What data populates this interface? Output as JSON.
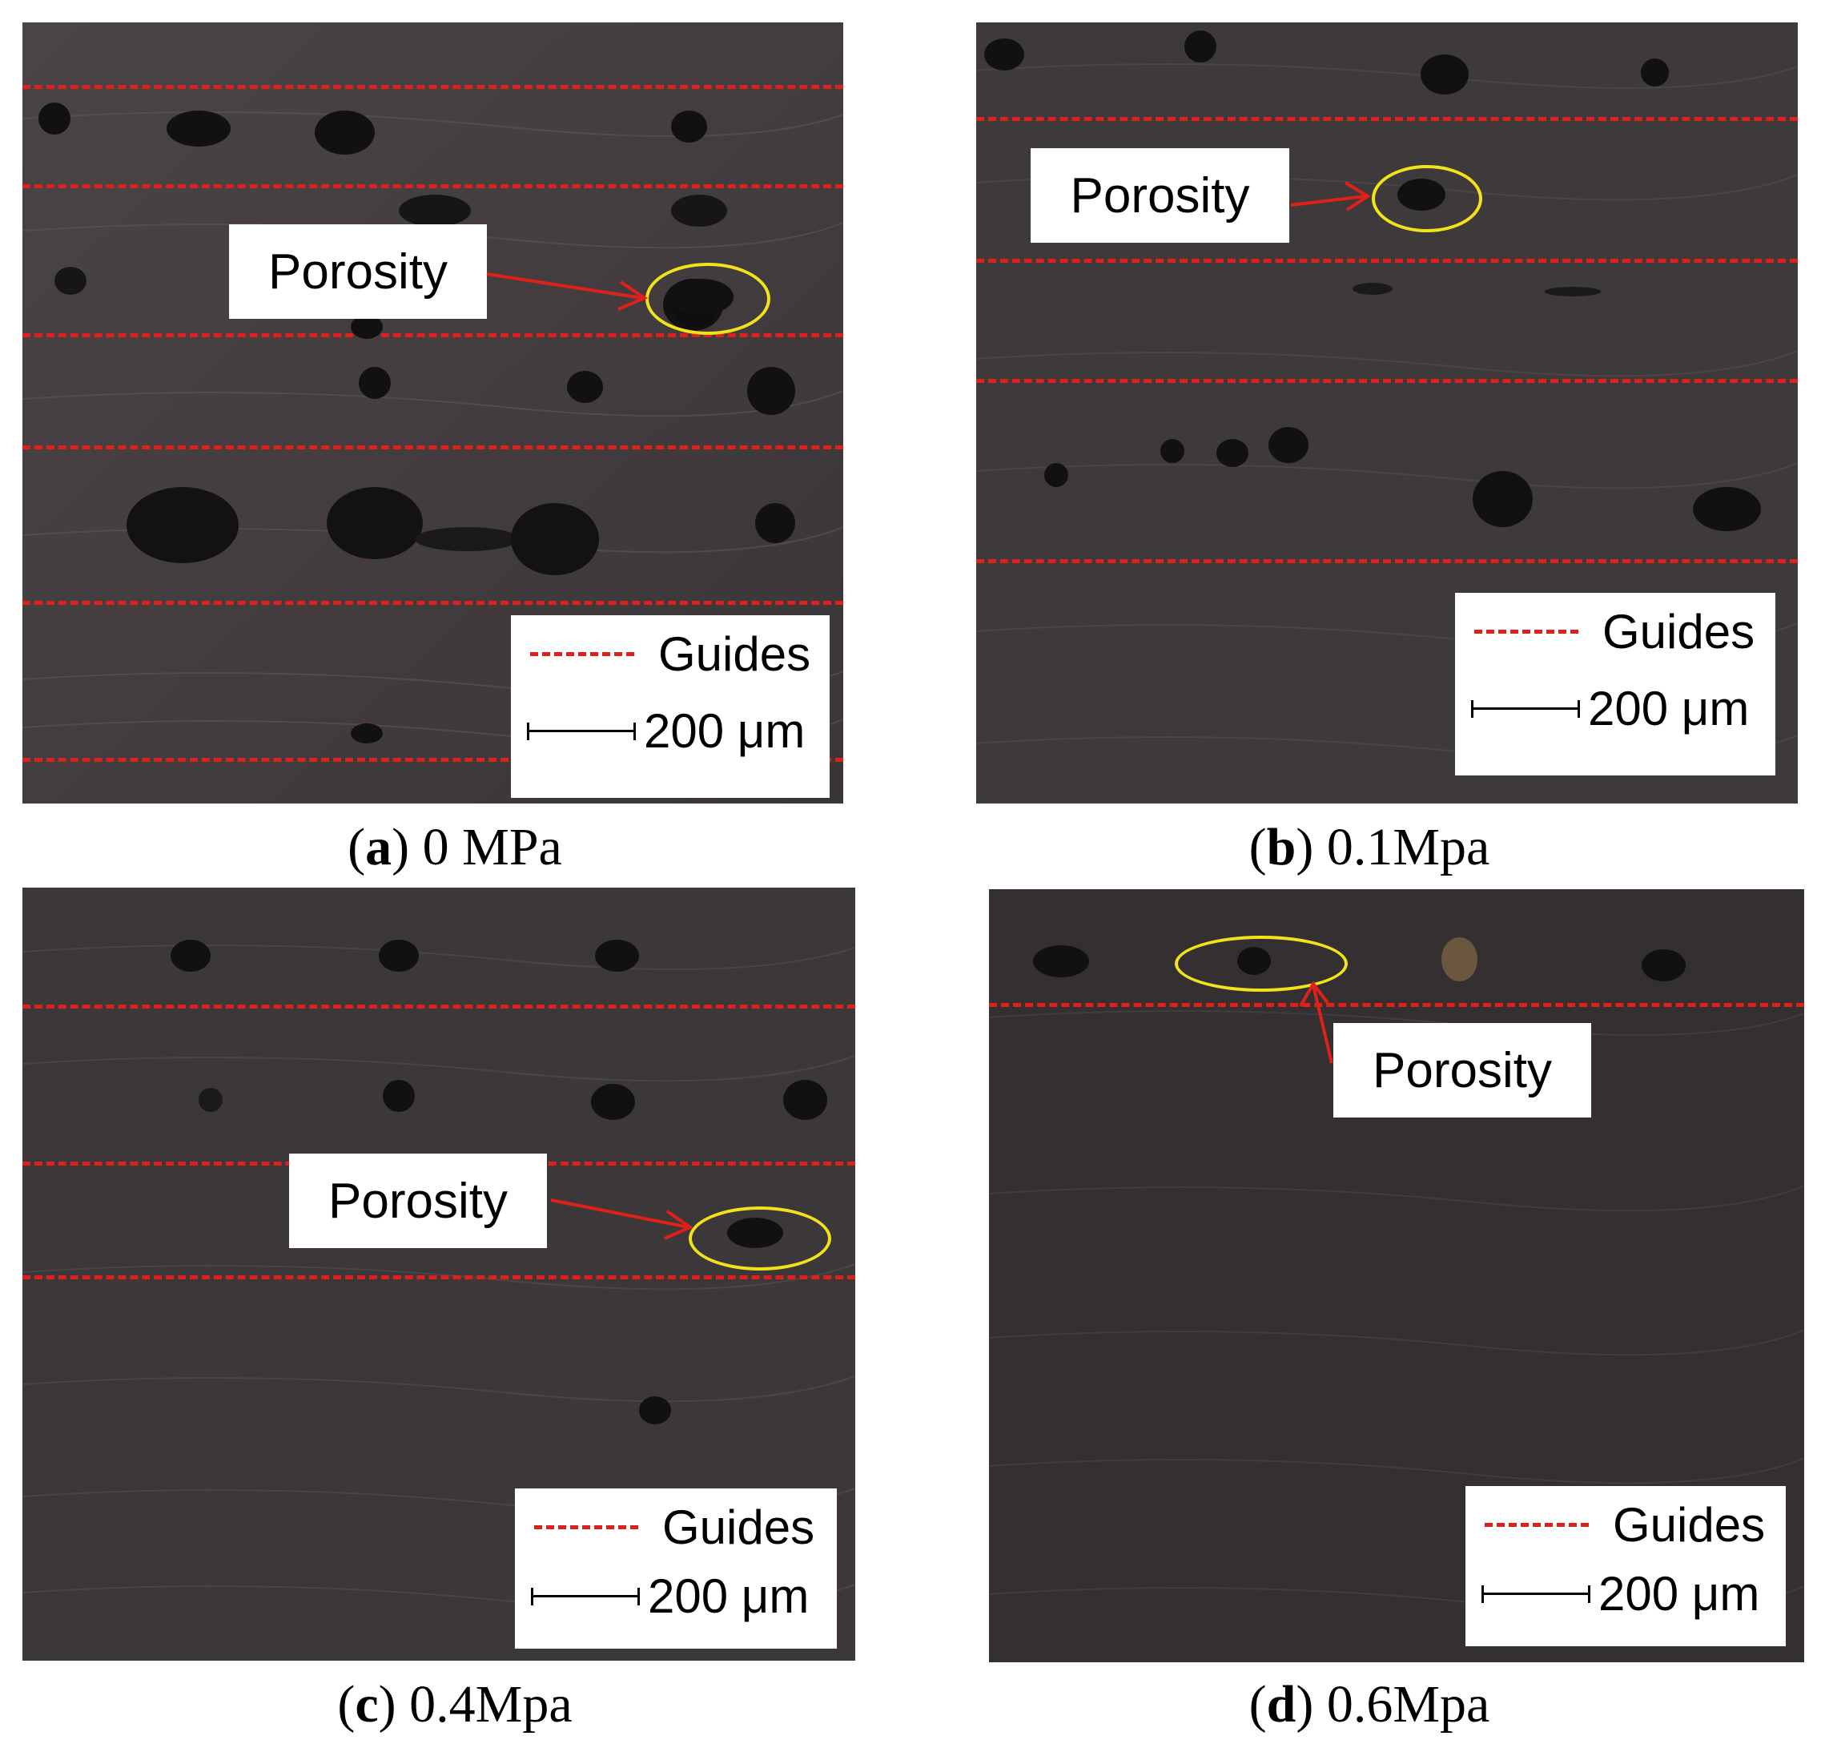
{
  "colors": {
    "guide": "#e0201a",
    "highlight": "#f2e21a",
    "arrow": "#e0201a"
  },
  "panels": [
    {
      "letter": "a",
      "caption_rest": " 0 MPa",
      "label": "Porosity",
      "legend_guides": "Guides",
      "scale_text": "200 μm"
    },
    {
      "letter": "b",
      "caption_rest": " 0.1Mpa",
      "label": "Porosity",
      "legend_guides": "Guides",
      "scale_text": "200 μm"
    },
    {
      "letter": "c",
      "caption_rest": " 0.4Mpa",
      "label": "Porosity",
      "legend_guides": "Guides",
      "scale_text": "200 μm"
    },
    {
      "letter": "d",
      "caption_rest": " 0.6Mpa",
      "label": "Porosity",
      "legend_guides": "Guides",
      "scale_text": "200 μm"
    }
  ]
}
